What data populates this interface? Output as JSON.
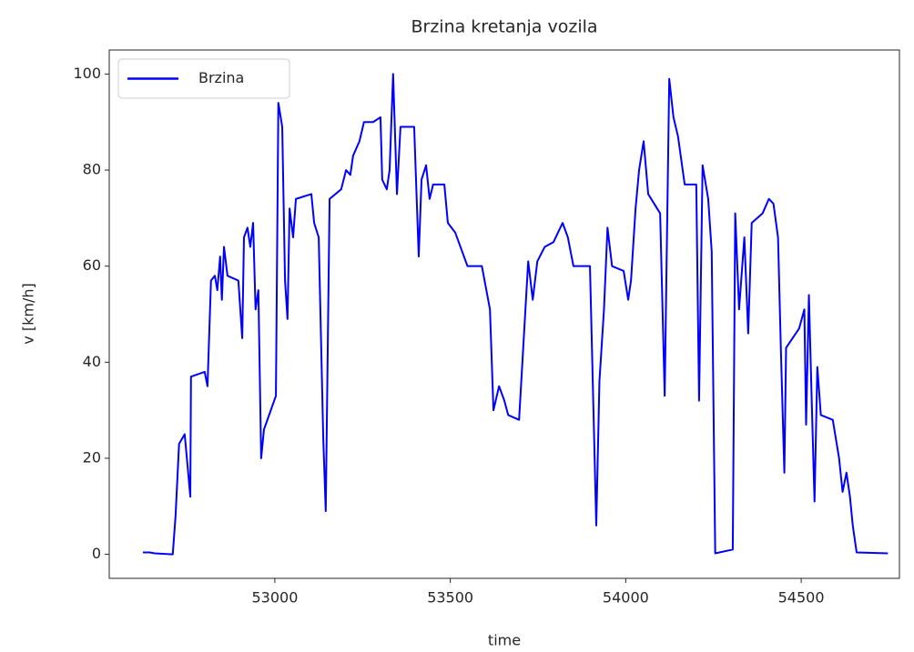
{
  "chart_data": {
    "type": "line",
    "title": "Brzina kretanja vozila",
    "xlabel": "time",
    "ylabel": "v [km/h]",
    "x": [
      52624,
      52644,
      52657,
      52709,
      52717,
      52727,
      52743,
      52753,
      52759,
      52761,
      52800,
      52808,
      52818,
      52829,
      52836,
      52844,
      52849,
      52855,
      52865,
      52896,
      52907,
      52912,
      52922,
      52930,
      52938,
      52945,
      52953,
      52961,
      52969,
      53003,
      53010,
      53021,
      53029,
      53036,
      53042,
      53052,
      53060,
      53104,
      53112,
      53125,
      53138,
      53145,
      53156,
      53189,
      53203,
      53215,
      53223,
      53241,
      53254,
      53280,
      53301,
      53306,
      53319,
      53327,
      53337,
      53348,
      53358,
      53397,
      53410,
      53418,
      53431,
      53441,
      53451,
      53483,
      53493,
      53514,
      53534,
      53549,
      53590,
      53613,
      53623,
      53639,
      53654,
      53665,
      53696,
      53722,
      53735,
      53748,
      53769,
      53794,
      53807,
      53820,
      53835,
      53851,
      53898,
      53908,
      53916,
      53925,
      53938,
      53948,
      53961,
      53994,
      54007,
      54015,
      54028,
      54038,
      54051,
      54064,
      54098,
      54111,
      54124,
      54136,
      54149,
      54168,
      54201,
      54209,
      54219,
      54235,
      54245,
      54255,
      54305,
      54312,
      54323,
      54338,
      54349,
      54359,
      54390,
      54408,
      54421,
      54434,
      54442,
      54452,
      54457,
      54494,
      54509,
      54514,
      54522,
      54530,
      54538,
      54546,
      54556,
      54590,
      54608,
      54618,
      54629,
      54639,
      54647,
      54658,
      54747
    ],
    "series": [
      {
        "name": "Brzina",
        "color": "#0000ff",
        "values": [
          0.4,
          0.4,
          0.2,
          0,
          8,
          23,
          25,
          17,
          12,
          37,
          38,
          35,
          57,
          58,
          55,
          62,
          53,
          64,
          58,
          57,
          45,
          66,
          68,
          64,
          69,
          51,
          55,
          20,
          26,
          33,
          94,
          89,
          57,
          49,
          72,
          66,
          74,
          75,
          69,
          66,
          24,
          9,
          74,
          76,
          80,
          79,
          83,
          86,
          90,
          90,
          91,
          78,
          76,
          80,
          100,
          75,
          89,
          89,
          62,
          78,
          81,
          74,
          77,
          77,
          69,
          67,
          63,
          60,
          60,
          51,
          30,
          35,
          32,
          29,
          28,
          61,
          53,
          61,
          64,
          65,
          67,
          69,
          66,
          60,
          60,
          30,
          6,
          36,
          51,
          68,
          60,
          59,
          53,
          57,
          72,
          80,
          86,
          75,
          71,
          33,
          99,
          91,
          87,
          77,
          77,
          32,
          81,
          74,
          63,
          0.2,
          1,
          71,
          51,
          66,
          46,
          69,
          71,
          74,
          73,
          66,
          43,
          17,
          43,
          47,
          51,
          27,
          54,
          32,
          11,
          39,
          29,
          28,
          20,
          13,
          17,
          12,
          6,
          0.4,
          0.2
        ]
      }
    ],
    "xlim": [
      52528,
      54780
    ],
    "ylim": [
      -5,
      105
    ],
    "xticks": [
      53000,
      53500,
      54000,
      54500
    ],
    "yticks": [
      0,
      20,
      40,
      60,
      80,
      100
    ],
    "legend": "upper left"
  }
}
